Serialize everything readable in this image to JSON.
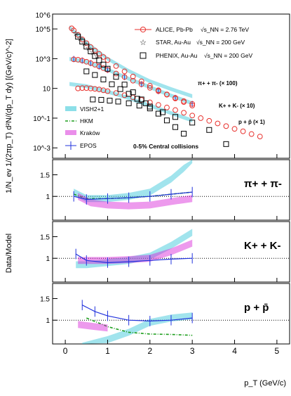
{
  "chart_data": [
    {
      "type": "scatter",
      "ylabel": "1/N_ev 1/(2πp_T) d²N/(dp_T dy) [(GeV/c)^-2]",
      "log_y": true,
      "ylim": [
        0.0002,
        1000000
      ],
      "xlim": [
        -0.3,
        5.3
      ],
      "x_ticks": [
        0,
        1,
        2,
        3,
        4,
        5
      ],
      "y_ticks": [
        "10^-3",
        "10^-1",
        "10",
        "10^3",
        "10^5"
      ],
      "y_tick_values": [
        0.001,
        0.1,
        10,
        1000,
        100000
      ],
      "y_ticks_top": "10^6",
      "legend_top": [
        {
          "label": "ALICE, Pb-Pb",
          "energy": "√s_NN = 2.76 TeV",
          "marker": "open-circle",
          "color": "#e8322e"
        },
        {
          "label": "STAR, Au-Au",
          "energy": "√s_NN = 200 GeV",
          "marker": "open-star",
          "color": "#000000"
        },
        {
          "label": "PHENIX, Au-Au",
          "energy": "√s_NN = 200 GeV",
          "marker": "open-square",
          "color": "#000000"
        }
      ],
      "legend_models": [
        {
          "label": "VISH2+1",
          "style": "hatched-band",
          "color": "#2ec4d6"
        },
        {
          "label": "HKM",
          "style": "dash-dot",
          "color": "#1e9e1e"
        },
        {
          "label": "Kraków",
          "style": "hatched-band",
          "color": "#d61ed6"
        },
        {
          "label": "EPOS",
          "style": "error-bars",
          "color": "#2233dd"
        }
      ],
      "centrality": "0-5% Central collisions",
      "species_labels": [
        {
          "text": "π+ + π- (× 100)"
        },
        {
          "text": "K+ + K- (× 10)"
        },
        {
          "text": "p + p̄ (× 1)"
        }
      ],
      "series": [
        {
          "name": "π+ + π- (× 100)",
          "marker": "open-circle",
          "color": "#e8322e",
          "x": [
            0.15,
            0.2,
            0.3,
            0.4,
            0.5,
            0.6,
            0.7,
            0.8,
            0.9,
            1.0,
            1.2,
            1.4,
            1.6,
            1.8,
            2.0,
            2.2,
            2.4,
            2.6,
            2.8,
            3.0
          ],
          "y": [
            110000,
            80000,
            40000,
            20000,
            11000,
            6000,
            3500,
            2100,
            1300,
            800,
            320,
            140,
            63,
            30,
            15,
            7.5,
            4,
            2.1,
            1.2,
            0.7
          ]
        },
        {
          "name": "K+ + K- (× 10)",
          "marker": "open-circle",
          "color": "#e8322e",
          "x": [
            0.2,
            0.3,
            0.4,
            0.5,
            0.6,
            0.7,
            0.8,
            0.9,
            1.0,
            1.2,
            1.4,
            1.6,
            1.8,
            2.0,
            2.2,
            2.4,
            2.6,
            2.8,
            3.0
          ],
          "y": [
            900,
            850,
            750,
            620,
            500,
            390,
            300,
            230,
            175,
            100,
            58,
            33,
            19,
            11,
            6.5,
            3.8,
            2.3,
            1.4,
            0.9
          ]
        },
        {
          "name": "p + p̄ (× 1)",
          "marker": "open-circle",
          "color": "#e8322e",
          "x": [
            0.3,
            0.4,
            0.5,
            0.6,
            0.7,
            0.8,
            0.9,
            1.0,
            1.2,
            1.4,
            1.6,
            1.8,
            2.0,
            2.2,
            2.4,
            2.6,
            2.8,
            3.0,
            3.2,
            3.4,
            3.6,
            3.8,
            4.0,
            4.2,
            4.4,
            4.6
          ],
          "y": [
            10,
            10.5,
            10.5,
            10,
            9.3,
            8.5,
            7.5,
            6.5,
            4.9,
            3.5,
            2.5,
            1.7,
            1.15,
            0.78,
            0.52,
            0.35,
            0.23,
            0.15,
            0.1,
            0.066,
            0.044,
            0.029,
            0.019,
            0.013,
            0.0085,
            0.0058
          ]
        },
        {
          "name": "STAR π",
          "marker": "open-star",
          "color": "#000000",
          "x": [
            0.25,
            0.35,
            0.45,
            0.55,
            0.65,
            0.75
          ],
          "y": [
            50000,
            23000,
            11000,
            5500,
            2800,
            1500
          ]
        },
        {
          "name": "PHENIX π",
          "marker": "open-square",
          "color": "#000000",
          "x": [
            0.3,
            0.4,
            0.5,
            0.6,
            0.7,
            0.8,
            0.9,
            1.0,
            1.2,
            1.4,
            1.6,
            1.8,
            2.0,
            2.2,
            2.4,
            2.6,
            2.8
          ],
          "y": [
            30000,
            14000,
            6500,
            3100,
            1500,
            780,
            400,
            210,
            60,
            18,
            5.5,
            1.8,
            0.6,
            0.2,
            0.07,
            0.025,
            0.009
          ]
        },
        {
          "name": "PHENIX K",
          "marker": "open-square",
          "color": "#000000",
          "x": [
            0.5,
            0.7,
            0.9,
            1.1,
            1.3,
            1.5,
            1.7,
            1.9
          ],
          "y": [
            140,
            80,
            40,
            19,
            9,
            4.3,
            2,
            1
          ]
        },
        {
          "name": "PHENIX p",
          "marker": "open-square",
          "color": "#000000",
          "x": [
            0.65,
            0.85,
            1.05,
            1.25,
            1.5,
            1.75,
            2.0,
            2.3,
            2.6,
            3.0,
            3.4,
            3.8
          ],
          "y": [
            1.8,
            1.7,
            1.5,
            1.3,
            1.0,
            0.7,
            0.45,
            0.25,
            0.12,
            0.05,
            0.016,
            0.0018
          ]
        },
        {
          "name": "VISH2+1 π",
          "style": "band",
          "color": "#2ec4d6",
          "x": [
            0.1,
            0.5,
            1.0,
            1.5,
            2.0,
            2.5,
            3.0
          ],
          "y": [
            130000,
            12000,
            1000,
            150,
            30,
            9,
            3
          ]
        },
        {
          "name": "VISH2+1 K",
          "style": "band",
          "color": "#2ec4d6",
          "x": [
            0.1,
            0.5,
            1.0,
            1.5,
            2.0,
            2.5,
            3.0
          ],
          "y": [
            950,
            600,
            180,
            45,
            12,
            3.3,
            1.0
          ]
        },
        {
          "name": "VISH2+1 p",
          "style": "band",
          "color": "#2ec4d6",
          "x": [
            0.1,
            0.5,
            1.0,
            1.5,
            2.0,
            2.5,
            3.0
          ],
          "y": [
            20,
            14,
            6,
            2.2,
            0.7,
            0.22,
            0.07
          ]
        },
        {
          "name": "EPOS",
          "style": "error-bars",
          "color": "#2233dd",
          "x": [
            0.2,
            0.4,
            0.6,
            0.8,
            1.0,
            1.4,
            1.8,
            2.2,
            2.6,
            3.0
          ],
          "y": [
            950,
            750,
            500,
            300,
            175,
            58,
            19,
            6.5,
            2.3,
            0.9
          ]
        }
      ]
    },
    {
      "type": "line",
      "panel": "π+ + π-",
      "ylabel": "Data/Model",
      "ylim": [
        0.45,
        1.85
      ],
      "y_ticks": [
        1,
        1.5
      ],
      "reference_line": 1,
      "series": [
        {
          "name": "VISH2+1",
          "color": "#2ec4d6",
          "x": [
            0.2,
            0.5,
            1.0,
            1.5,
            2.0,
            2.5,
            2.8,
            3.0
          ],
          "y": [
            1.1,
            0.95,
            0.95,
            1.0,
            1.1,
            1.4,
            1.65,
            1.85
          ]
        },
        {
          "name": "HKM",
          "color": "#1e9e1e",
          "x": [
            0.2,
            0.5,
            1.0,
            1.5,
            2.0,
            2.5,
            3.0
          ],
          "y": [
            1.05,
            0.95,
            0.95,
            0.97,
            1.0,
            1.05,
            1.1
          ]
        },
        {
          "name": "Kraków",
          "color": "#d61ed6",
          "x": [
            0.3,
            0.6,
            1.0,
            1.5,
            2.0,
            2.5,
            3.0
          ],
          "y": [
            1.0,
            0.85,
            0.8,
            0.78,
            0.8,
            0.88,
            0.95
          ]
        },
        {
          "name": "EPOS",
          "color": "#2233dd",
          "x": [
            0.2,
            0.5,
            1.0,
            1.5,
            2.0,
            2.5,
            3.0
          ],
          "y": [
            1.0,
            0.93,
            0.95,
            0.97,
            1.0,
            1.05,
            1.1
          ]
        }
      ]
    },
    {
      "type": "line",
      "panel": "K+ + K-",
      "ylim": [
        0.45,
        1.85
      ],
      "y_ticks": [
        1,
        1.5
      ],
      "reference_line": 1,
      "series": [
        {
          "name": "VISH2+1",
          "color": "#2ec4d6",
          "x": [
            0.25,
            0.5,
            1.0,
            1.5,
            2.0,
            2.5,
            3.0
          ],
          "y": [
            0.85,
            0.85,
            0.9,
            0.95,
            1.05,
            1.3,
            1.6
          ]
        },
        {
          "name": "Kraków",
          "color": "#d61ed6",
          "x": [
            0.3,
            1.0,
            1.5,
            2.0,
            2.5,
            3.0
          ],
          "y": [
            0.95,
            0.95,
            0.97,
            1.0,
            1.15,
            1.35
          ]
        },
        {
          "name": "EPOS",
          "color": "#2233dd",
          "x": [
            0.25,
            0.5,
            1.0,
            1.5,
            2.0,
            2.5,
            3.0
          ],
          "y": [
            1.1,
            0.95,
            0.9,
            0.92,
            0.95,
            0.98,
            1.0
          ]
        }
      ]
    },
    {
      "type": "line",
      "panel": "p + p̄",
      "xlabel": "p_T (GeV/c)",
      "ylim": [
        0.45,
        1.85
      ],
      "y_ticks": [
        1,
        1.5
      ],
      "reference_line": 1,
      "series": [
        {
          "name": "VISH2+1",
          "color": "#2ec4d6",
          "x": [
            0.4,
            1.0,
            1.5,
            2.0,
            2.5,
            3.0
          ],
          "y": [
            0.4,
            0.55,
            0.72,
            0.95,
            1.05,
            1.1
          ]
        },
        {
          "name": "HKM",
          "color": "#1e9e1e",
          "x": [
            0.5,
            1.0,
            1.5,
            2.0,
            2.5,
            3.0
          ],
          "y": [
            1.05,
            0.85,
            0.72,
            0.68,
            0.67,
            0.65
          ]
        },
        {
          "name": "Kraków",
          "color": "#d61ed6",
          "x": [
            0.3,
            0.7,
            1.0
          ],
          "y": [
            0.9,
            0.85,
            0.82
          ]
        },
        {
          "name": "EPOS",
          "color": "#2233dd",
          "x": [
            0.4,
            0.7,
            1.0,
            1.5,
            2.0,
            2.5,
            3.0
          ],
          "y": [
            1.35,
            1.2,
            1.1,
            1.0,
            0.98,
            1.0,
            1.05
          ]
        }
      ]
    }
  ],
  "colors": {
    "alice": "#e8322e",
    "vish": "#2ec4d6",
    "hkm": "#1e9e1e",
    "krakow": "#d61ed6",
    "epos": "#2233dd"
  }
}
